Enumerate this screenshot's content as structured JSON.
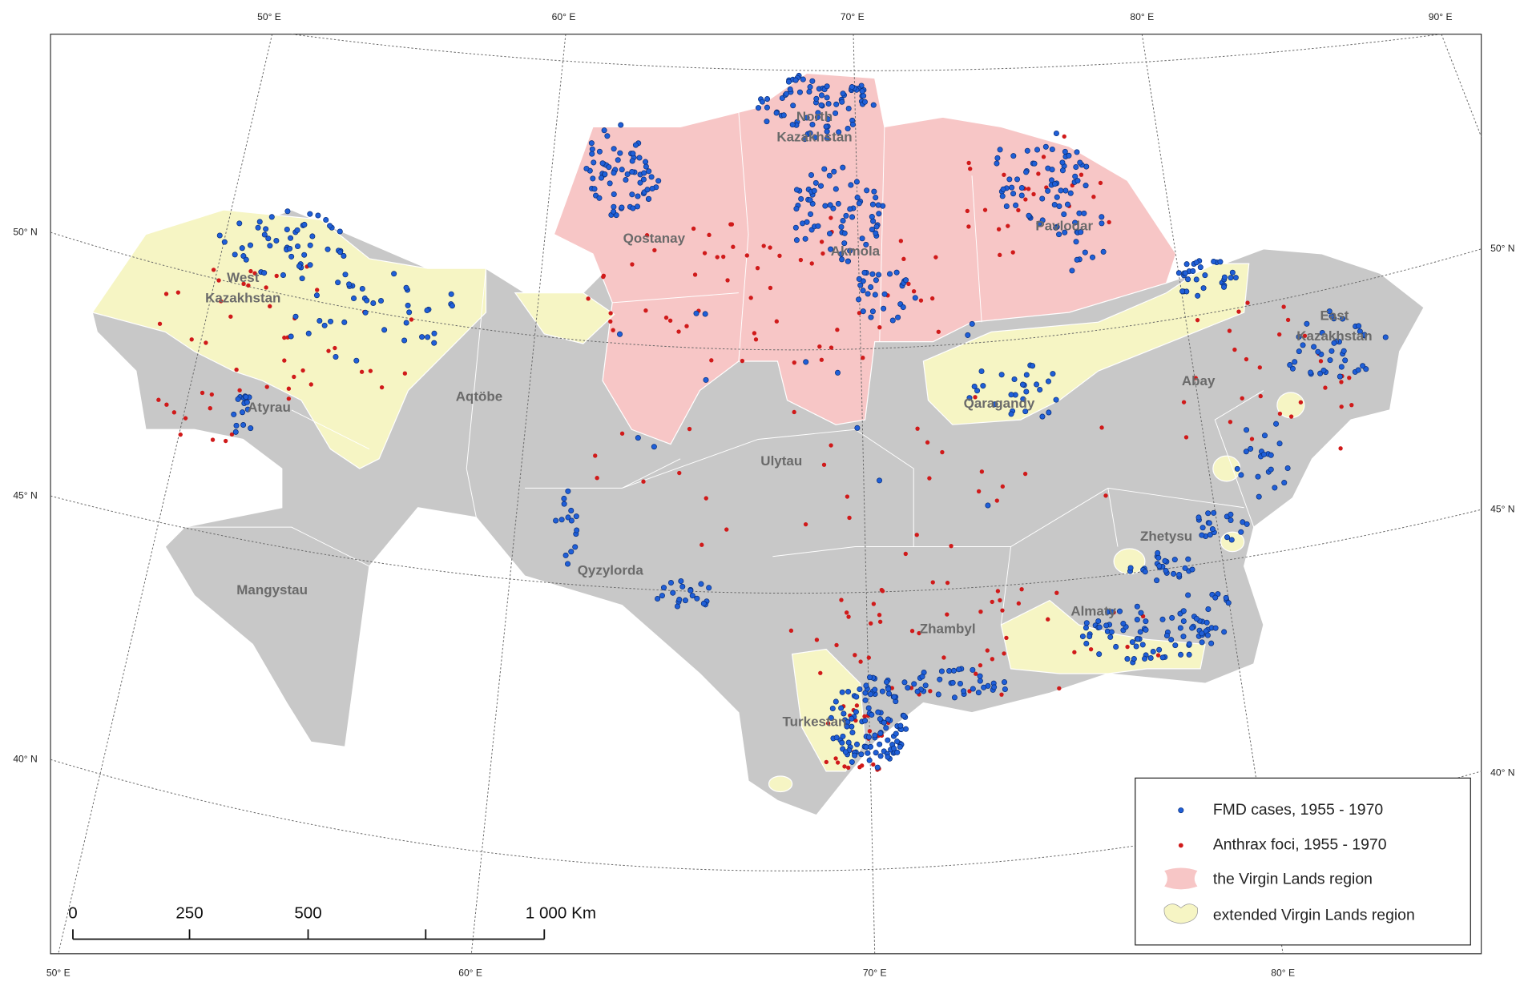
{
  "graticule": {
    "top": [
      "50° E",
      "60° E",
      "70° E",
      "80° E",
      "90° E"
    ],
    "bottom": [
      "50° E",
      "60° E",
      "70° E",
      "80° E"
    ],
    "left": [
      "50° N",
      "45° N",
      "40° N"
    ],
    "right": [
      "50° N",
      "45° N",
      "40° N"
    ]
  },
  "regions": [
    {
      "lines": [
        "North",
        "Kazakhstan"
      ]
    },
    {
      "lines": [
        "Qostanay"
      ]
    },
    {
      "lines": [
        "Akmola"
      ]
    },
    {
      "lines": [
        "Pavlodar"
      ]
    },
    {
      "lines": [
        "West",
        "Kazakhstan"
      ]
    },
    {
      "lines": [
        "Aqtöbe"
      ]
    },
    {
      "lines": [
        "Atyrau"
      ]
    },
    {
      "lines": [
        "Qaragandy"
      ]
    },
    {
      "lines": [
        "Abay"
      ]
    },
    {
      "lines": [
        "East",
        "Kazakhstan"
      ]
    },
    {
      "lines": [
        "Ulytau"
      ]
    },
    {
      "lines": [
        "Zhetysu"
      ]
    },
    {
      "lines": [
        "Qyzylorda"
      ]
    },
    {
      "lines": [
        "Mangystau"
      ]
    },
    {
      "lines": [
        "Zhambyl"
      ]
    },
    {
      "lines": [
        "Almaty"
      ]
    },
    {
      "lines": [
        "Turkestan"
      ]
    }
  ],
  "legend": {
    "items": [
      "FMD cases, 1955 - 1970",
      "Anthrax foci, 1955 - 1970",
      "the Virgin Lands region",
      "extended Virgin Lands region"
    ]
  },
  "scale_bar": {
    "labels": [
      "0",
      "250",
      "500",
      "1 000 Km"
    ]
  }
}
